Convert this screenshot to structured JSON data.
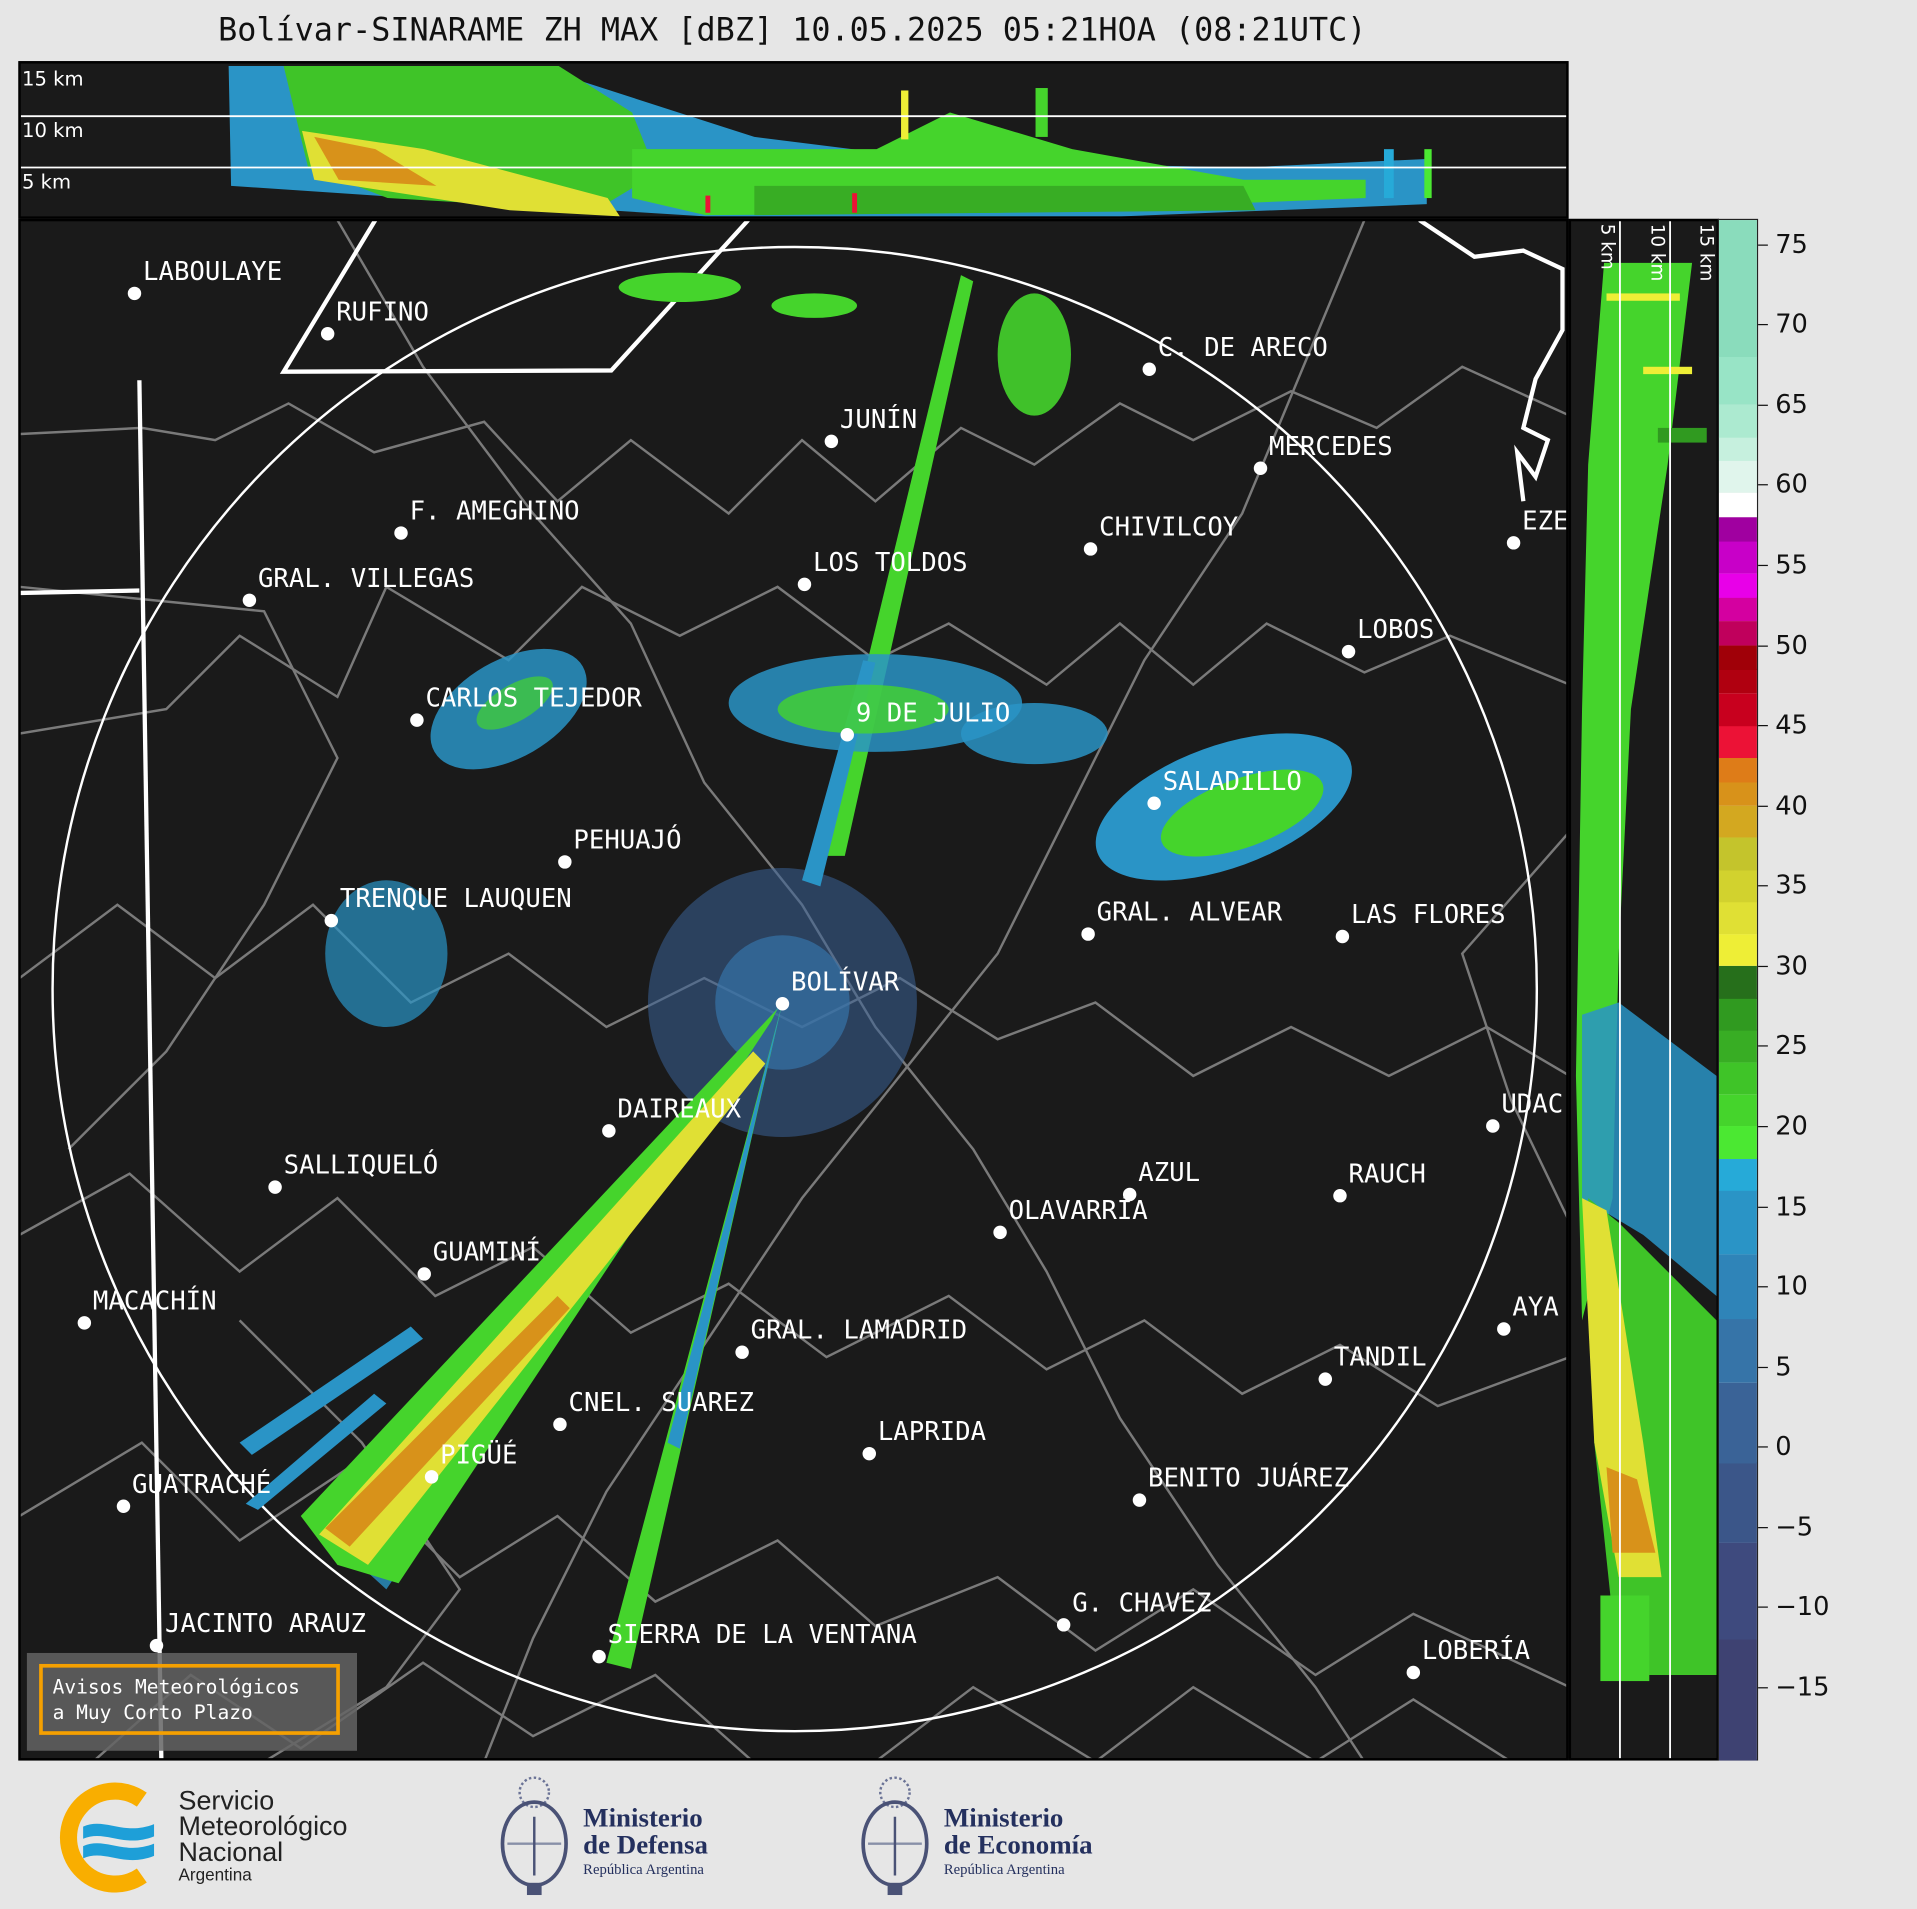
{
  "title": "Bolívar-SINARAME ZH MAX [dBZ] 10.05.2025 05:21HOA (08:21UTC)",
  "top_panel": {
    "height_labels": [
      "15 km",
      "10 km",
      "5 km"
    ]
  },
  "side_panel": {
    "height_labels": [
      "5 km",
      "10 km",
      "15 km"
    ]
  },
  "colorbar": {
    "unit": "dBZ",
    "min": -19.5,
    "max": 76.5,
    "ticks": [
      "75",
      "70",
      "65",
      "60",
      "55",
      "50",
      "45",
      "40",
      "35",
      "30",
      "25",
      "20",
      "15",
      "10",
      "5",
      "0",
      "−5",
      "−10",
      "−15"
    ],
    "tick_values": [
      75,
      70,
      65,
      60,
      55,
      50,
      45,
      40,
      35,
      30,
      25,
      20,
      15,
      10,
      5,
      0,
      -5,
      -10,
      -15
    ],
    "bands": [
      {
        "from": -19.5,
        "color": "#3e4272"
      },
      {
        "from": -12,
        "color": "#3e4a7e"
      },
      {
        "from": -6,
        "color": "#3b5689"
      },
      {
        "from": -1,
        "color": "#3a6397"
      },
      {
        "from": 4,
        "color": "#3674a8"
      },
      {
        "from": 8,
        "color": "#2f84b8"
      },
      {
        "from": 12,
        "color": "#2a94c6"
      },
      {
        "from": 16,
        "color": "#26aad8"
      },
      {
        "from": 18,
        "color": "#4be832"
      },
      {
        "from": 20,
        "color": "#45d42c"
      },
      {
        "from": 22,
        "color": "#3fc428"
      },
      {
        "from": 24,
        "color": "#38ad24"
      },
      {
        "from": 26,
        "color": "#309a20"
      },
      {
        "from": 28,
        "color": "#266f1b"
      },
      {
        "from": 30,
        "color": "#eeee36"
      },
      {
        "from": 32,
        "color": "#e0e034"
      },
      {
        "from": 34,
        "color": "#d2d22e"
      },
      {
        "from": 36,
        "color": "#c4c42c"
      },
      {
        "from": 38,
        "color": "#d3a820"
      },
      {
        "from": 40,
        "color": "#d8921a"
      },
      {
        "from": 41.5,
        "color": "#de7c18"
      },
      {
        "from": 43,
        "color": "#ec1236"
      },
      {
        "from": 45,
        "color": "#c8001e"
      },
      {
        "from": 47,
        "color": "#b00010"
      },
      {
        "from": 48.5,
        "color": "#a00008"
      },
      {
        "from": 50,
        "color": "#c0005c"
      },
      {
        "from": 51.5,
        "color": "#d400a0"
      },
      {
        "from": 53,
        "color": "#e800e8"
      },
      {
        "from": 54.5,
        "color": "#c800c8"
      },
      {
        "from": 56.5,
        "color": "#a000a0"
      },
      {
        "from": 58,
        "color": "#ffffff"
      },
      {
        "from": 59.5,
        "color": "#e0f5ec"
      },
      {
        "from": 61.5,
        "color": "#c6f0de"
      },
      {
        "from": 63,
        "color": "#acead0"
      },
      {
        "from": 65,
        "color": "#98e4c6"
      },
      {
        "from": 68,
        "color": "#8adcbc"
      }
    ]
  },
  "cities": [
    {
      "name": "LABOULAYE"
    },
    {
      "name": "RUFINO"
    },
    {
      "name": "C. DE ARECO"
    },
    {
      "name": "JUNÍN"
    },
    {
      "name": "MERCEDES"
    },
    {
      "name": "F. AMEGHINO"
    },
    {
      "name": "CHIVILCOY"
    },
    {
      "name": "EZE"
    },
    {
      "name": "GRAL. VILLEGAS"
    },
    {
      "name": "LOS TOLDOS"
    },
    {
      "name": "LOBOS"
    },
    {
      "name": "CARLOS TEJEDOR"
    },
    {
      "name": "9 DE JULIO"
    },
    {
      "name": "SALADILLO"
    },
    {
      "name": "PEHUAJÓ"
    },
    {
      "name": "TRENQUE LAUQUEN"
    },
    {
      "name": "GRAL. ALVEAR"
    },
    {
      "name": "LAS FLORES"
    },
    {
      "name": "BOLÍVAR"
    },
    {
      "name": "DAIREAUX"
    },
    {
      "name": "UDAC"
    },
    {
      "name": "SALLIQUELÓ"
    },
    {
      "name": "AZUL"
    },
    {
      "name": "RAUCH"
    },
    {
      "name": "OLAVARRÍA"
    },
    {
      "name": "GUAMINÍ"
    },
    {
      "name": "MACACHÍN"
    },
    {
      "name": "AYA"
    },
    {
      "name": "GRAL. LAMADRID"
    },
    {
      "name": "TANDIL"
    },
    {
      "name": "CNEL. SUAREZ"
    },
    {
      "name": "LAPRIDA"
    },
    {
      "name": "PIGÜÉ"
    },
    {
      "name": "GUATRACHÉ"
    },
    {
      "name": "BENITO JUÁREZ"
    },
    {
      "name": "G. CHAVEZ"
    },
    {
      "name": "JACINTO ARAUZ"
    },
    {
      "name": "SIERRA DE LA VENTANA"
    },
    {
      "name": "LOBERÍA"
    }
  ],
  "avisos": {
    "line1": "Avisos Meteorológicos",
    "line2": "a Muy Corto Plazo"
  },
  "logos": {
    "smn": {
      "line1": "Servicio",
      "line2": "Meteorológico",
      "line3": "Nacional",
      "line4": "Argentina",
      "colors": {
        "ring": "#f9ae00",
        "waves": "#1e9fd8"
      }
    },
    "defensa": {
      "line1": "Ministerio",
      "line2": "de Defensa",
      "line3": "República Argentina"
    },
    "economia": {
      "line1": "Ministerio",
      "line2": "de Economía",
      "line3": "República Argentina"
    }
  }
}
